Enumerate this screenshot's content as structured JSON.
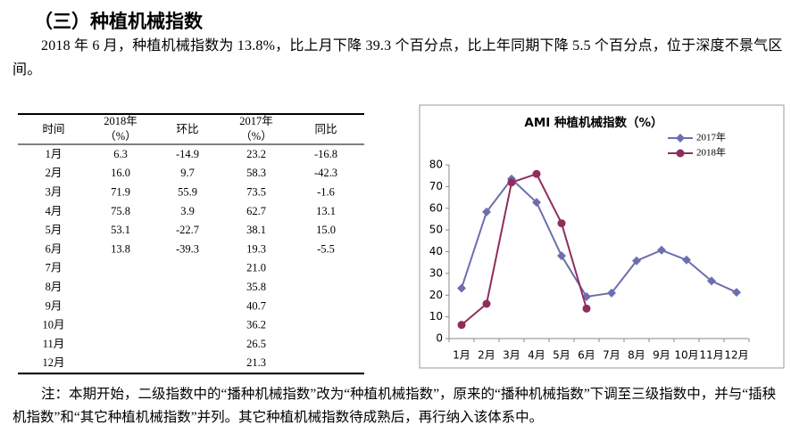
{
  "heading": "（三）种植机械指数",
  "paragraph": "2018 年 6 月，种植机械指数为 13.8%，比上月下降 39.3 个百分点，比上年同期下降 5.5 个百分点，位于深度不景气区间。",
  "table": {
    "header": [
      [
        "时间"
      ],
      [
        "2018年",
        "（%）"
      ],
      [
        "环比"
      ],
      [
        "2017年",
        "（%）"
      ],
      [
        "同比"
      ]
    ],
    "rows": [
      {
        "time": "1月",
        "y2018": "6.3",
        "mom": "-14.9",
        "y2017": "23.2",
        "yoy": "-16.8"
      },
      {
        "time": "2月",
        "y2018": "16.0",
        "mom": "9.7",
        "y2017": "58.3",
        "yoy": "-42.3"
      },
      {
        "time": "3月",
        "y2018": "71.9",
        "mom": "55.9",
        "y2017": "73.5",
        "yoy": "-1.6"
      },
      {
        "time": "4月",
        "y2018": "75.8",
        "mom": "3.9",
        "y2017": "62.7",
        "yoy": "13.1"
      },
      {
        "time": "5月",
        "y2018": "53.1",
        "mom": "-22.7",
        "y2017": "38.1",
        "yoy": "15.0"
      },
      {
        "time": "6月",
        "y2018": "13.8",
        "mom": "-39.3",
        "y2017": "19.3",
        "yoy": "-5.5"
      },
      {
        "time": "7月",
        "y2017": "21.0"
      },
      {
        "time": "8月",
        "y2017": "35.8"
      },
      {
        "time": "9月",
        "y2017": "40.7"
      },
      {
        "time": "10月",
        "y2017": "36.2"
      },
      {
        "time": "11月",
        "y2017": "26.5"
      },
      {
        "time": "12月",
        "y2017": "21.3"
      }
    ]
  },
  "chart_data": {
    "type": "line",
    "title": "AMI 种植机械指数（%）",
    "categories": [
      "1月",
      "2月",
      "3月",
      "4月",
      "5月",
      "6月",
      "7月",
      "8月",
      "9月",
      "10月",
      "11月",
      "12月"
    ],
    "series": [
      {
        "name": "2017年",
        "color": "#6b6fae",
        "marker": "diamond",
        "values": [
          23.2,
          58.3,
          73.5,
          62.7,
          38.1,
          19.3,
          21.0,
          35.8,
          40.7,
          36.2,
          26.5,
          21.3
        ]
      },
      {
        "name": "2018年",
        "color": "#8f2d5c",
        "marker": "circle",
        "values": [
          6.3,
          16.0,
          71.9,
          75.8,
          53.1,
          13.8,
          null,
          null,
          null,
          null,
          null,
          null
        ]
      }
    ],
    "ylim": [
      0,
      80
    ],
    "yticks": [
      0,
      10,
      20,
      30,
      40,
      50,
      60,
      70,
      80
    ],
    "grid": false,
    "legend": "top-right"
  },
  "note": "注：本期开始，二级指数中的“播种机械指数”改为“种植机械指数”，原来的“播种机械指数”下调至三级指数中，并与“插秧机指数”和“其它种植机械指数”并列。其它种植机械指数待成熟后，再行纳入该体系中。"
}
